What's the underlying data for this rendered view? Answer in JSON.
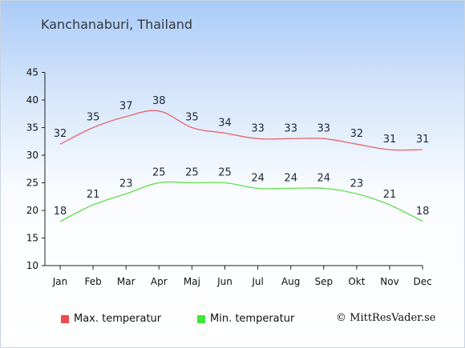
{
  "page": {
    "title": "Kanchanaburi, Thailand",
    "credit": "© MittResVader.se"
  },
  "colors": {
    "max_line": "#e8656b",
    "min_line": "#5fe04a",
    "max_swatch": "#ee4b4b",
    "min_swatch": "#3ee83a",
    "axis": "#222222"
  },
  "chart_data": {
    "type": "line",
    "categories": [
      "Jan",
      "Feb",
      "Mar",
      "Apr",
      "Maj",
      "Jun",
      "Jul",
      "Aug",
      "Sep",
      "Okt",
      "Nov",
      "Dec"
    ],
    "series": [
      {
        "name": "Max. temperatur",
        "values": [
          32,
          35,
          37,
          38,
          35,
          34,
          33,
          33,
          33,
          32,
          31,
          31
        ]
      },
      {
        "name": "Min. temperatur",
        "values": [
          18,
          21,
          23,
          25,
          25,
          25,
          24,
          24,
          24,
          23,
          21,
          18
        ]
      }
    ],
    "ylim": [
      10,
      45
    ],
    "yticks": [
      10,
      15,
      20,
      25,
      30,
      35,
      40,
      45
    ],
    "grid": false,
    "legend": "bottom"
  }
}
